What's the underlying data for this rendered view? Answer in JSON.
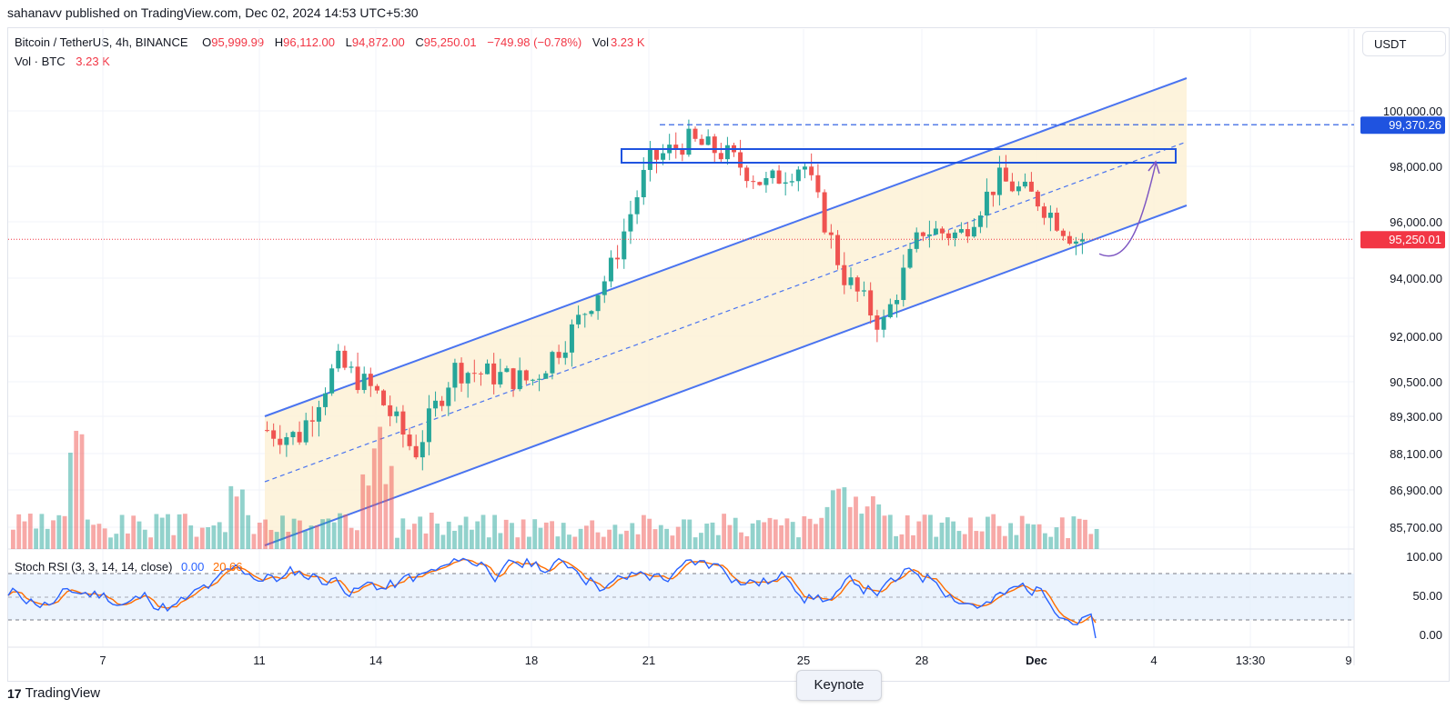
{
  "header": {
    "publisher": "sahanavv published on TradingView.com, Dec 02, 2024 14:53 UTC+5:30"
  },
  "legend": {
    "symbol": "Bitcoin / TetherUS, 4h, BINANCE",
    "o_label": "O",
    "o_value": "95,999.99",
    "h_label": "H",
    "h_value": "96,112.00",
    "l_label": "L",
    "l_value": "94,872.00",
    "c_label": "C",
    "c_value": "95,250.01",
    "change": "−749.98 (−0.78%)",
    "vol_label": "Vol",
    "vol_value": "3.23 K",
    "vol_btc_label": "Vol · BTC",
    "vol_btc_value": "3.23 K"
  },
  "rsi": {
    "label": "Stoch RSI (3, 3, 14, 14, close)",
    "k_value": "0.00",
    "d_value": "20.66"
  },
  "currency_button": "USDT",
  "price_labels": {
    "highlight_resistance": "99,370.26",
    "highlight_last": "95,250.01"
  },
  "footer": {
    "brand": "TradingView",
    "keynote": "Keynote"
  },
  "colors": {
    "up": "#26a69a",
    "down": "#ef5350",
    "channel_line": "#4a74f0",
    "channel_fill": "#fdf1d6",
    "resistance_box": "#1f53e0",
    "rsi_k": "#2962ff",
    "rsi_d": "#ff6d00",
    "rsi_band": "#e3eefc"
  },
  "chart_data": {
    "type": "candlestick",
    "symbol": "Bitcoin / TetherUS",
    "interval": "4h",
    "exchange": "BINANCE",
    "y_axis_labels": [
      "100,000.00",
      "98,000.00",
      "96,000.00",
      "94,000.00",
      "92,000.00",
      "90,500.00",
      "89,300.00",
      "88,100.00",
      "86,900.00",
      "85,700.00"
    ],
    "x_axis_labels": [
      "7",
      "11",
      "14",
      "18",
      "21",
      "25",
      "28",
      "Dec",
      "4",
      "13:30",
      "9"
    ],
    "rsi_axis_labels": [
      "100.00",
      "50.00",
      "0.00"
    ],
    "price_series_approx": [
      {
        "date": "Nov 11",
        "price": 88800
      },
      {
        "date": "Nov 12",
        "price": 88500
      },
      {
        "date": "Nov 13",
        "price": 91000
      },
      {
        "date": "Nov 14",
        "price": 90000
      },
      {
        "date": "Nov 15",
        "price": 88000
      },
      {
        "date": "Nov 16",
        "price": 90800
      },
      {
        "date": "Nov 18",
        "price": 90400
      },
      {
        "date": "Nov 19",
        "price": 92000
      },
      {
        "date": "Nov 20",
        "price": 94100
      },
      {
        "date": "Nov 21",
        "price": 98000
      },
      {
        "date": "Nov 22",
        "price": 98800
      },
      {
        "date": "Nov 23",
        "price": 98300
      },
      {
        "date": "Nov 24",
        "price": 97200
      },
      {
        "date": "Nov 25",
        "price": 98000
      },
      {
        "date": "Nov 26",
        "price": 94000
      },
      {
        "date": "Nov 27",
        "price": 92200
      },
      {
        "date": "Nov 28",
        "price": 95600
      },
      {
        "date": "Nov 29",
        "price": 95400
      },
      {
        "date": "Nov 30",
        "price": 97400
      },
      {
        "date": "Dec 01",
        "price": 96700
      },
      {
        "date": "Dec 02",
        "price": 95250
      }
    ],
    "annotations": {
      "resistance_level": 99370.26,
      "last_price": 95250.01
    }
  }
}
